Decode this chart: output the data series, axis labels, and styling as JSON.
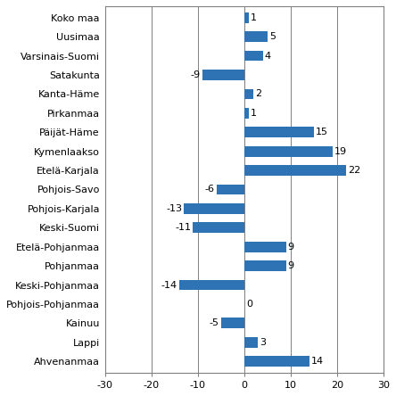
{
  "categories": [
    "Koko maa",
    "Uusimaa",
    "Varsinais-Suomi",
    "Satakunta",
    "Kanta-Häme",
    "Pirkanmaa",
    "Päijät-Häme",
    "Kymenlaakso",
    "Etelä-Karjala",
    "Pohjois-Savo",
    "Pohjois-Karjala",
    "Keski-Suomi",
    "Etelä-Pohjanmaa",
    "Pohjanmaa",
    "Keski-Pohjanmaa",
    "Pohjois-Pohjanmaa",
    "Kainuu",
    "Lappi",
    "Ahvenanmaa"
  ],
  "values": [
    1,
    5,
    4,
    -9,
    2,
    1,
    15,
    19,
    22,
    -6,
    -13,
    -11,
    9,
    9,
    -14,
    0,
    -5,
    3,
    14
  ],
  "bar_color": "#2E74B5",
  "xlim": [
    -30,
    30
  ],
  "xticks": [
    -30,
    -20,
    -10,
    0,
    10,
    20,
    30
  ],
  "grid_color": "#808080",
  "background_color": "#FFFFFF",
  "label_fontsize": 8.0,
  "value_fontsize": 8.0,
  "axis_fontsize": 8.0,
  "bar_height": 0.55
}
